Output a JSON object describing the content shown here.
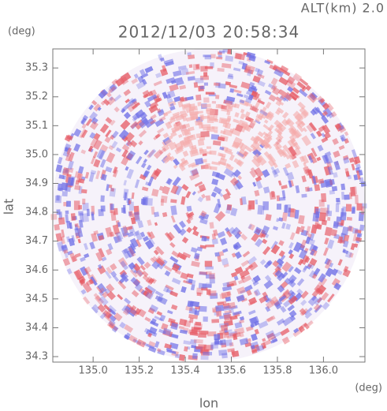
{
  "chart_data": {
    "type": "radar",
    "title": "2012/12/03 20:58:34",
    "annotation": "ALT(km) 2.0",
    "y_unit": "(deg)",
    "x_unit": "(deg)",
    "x_label": "lon",
    "y_label": "lat",
    "xlim": [
      134.825,
      136.18
    ],
    "xticks": [
      {
        "value": 135.0,
        "label": "135.0"
      },
      135.2,
      135.4,
      135.6,
      135.8,
      {
        "value": 136.0,
        "label": "136.0"
      }
    ],
    "ylim": [
      34.281,
      35.366
    ],
    "yticks": [
      34.3,
      34.4,
      34.5,
      34.6,
      34.7,
      34.8,
      34.9,
      {
        "value": 35.0,
        "label": "35.0"
      },
      35.1,
      35.2,
      35.3
    ]
  }
}
